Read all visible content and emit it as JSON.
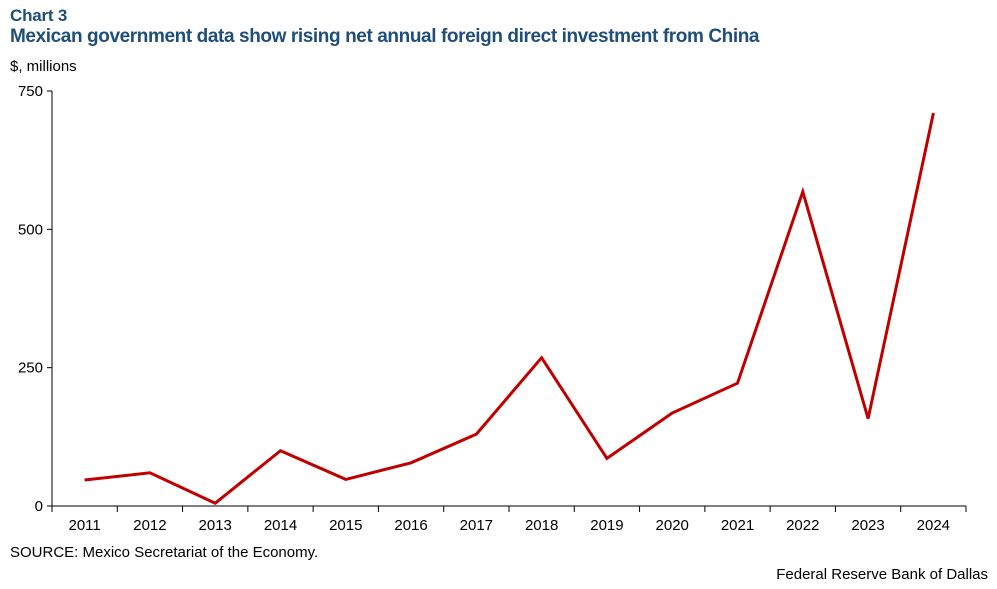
{
  "header": {
    "chart_label": "Chart 3",
    "title": "Mexican government data show rising net annual foreign direct investment from China"
  },
  "footer": {
    "source": "SOURCE: Mexico Secretariat of the Economy.",
    "credit": "Federal Reserve Bank of Dallas"
  },
  "colors": {
    "title": "#1f4e79",
    "line": "#c00000",
    "axis": "#000000"
  },
  "chart_data": {
    "type": "line",
    "title": "Mexican government data show rising net annual foreign direct investment from China",
    "xlabel": "",
    "ylabel": "$, millions",
    "categories": [
      "2011",
      "2012",
      "2013",
      "2014",
      "2015",
      "2016",
      "2017",
      "2018",
      "2019",
      "2020",
      "2021",
      "2022",
      "2023",
      "2024"
    ],
    "series": [
      {
        "values": [
          47,
          60,
          5,
          100,
          48,
          78,
          130,
          268,
          86,
          168,
          222,
          568,
          158,
          710
        ]
      }
    ],
    "ylim": [
      0,
      750
    ],
    "yticks": [
      0,
      250,
      500,
      750
    ],
    "grid": false,
    "legend": "none"
  }
}
